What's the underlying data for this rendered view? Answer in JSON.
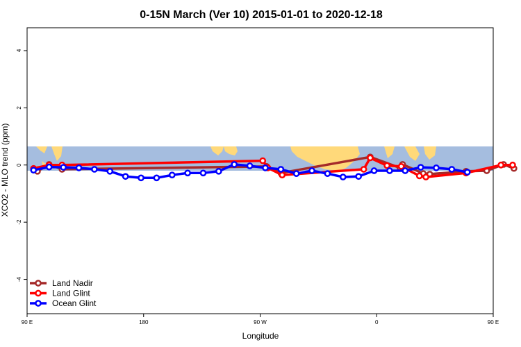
{
  "chart_data": {
    "type": "line",
    "title": "0-15N March (Ver 10)   2015-01-01 to 2020-12-18",
    "xlabel": "Longitude",
    "ylabel": "XCO2 - MLO trend (ppm)",
    "xlim": [
      90,
      450
    ],
    "ylim": [
      -5.2,
      4.8
    ],
    "x_ticks": [
      {
        "value": 90,
        "label": "90 E"
      },
      {
        "value": 180,
        "label": "180"
      },
      {
        "value": 270,
        "label": "90 W"
      },
      {
        "value": 360,
        "label": "0"
      },
      {
        "value": 450,
        "label": "90 E"
      },
      {
        "value": 540,
        "label": "180"
      }
    ],
    "y_ticks": [
      {
        "value": 4,
        "label": "4"
      },
      {
        "value": 2,
        "label": "2"
      },
      {
        "value": 0,
        "label": "0"
      },
      {
        "value": -2,
        "label": "-2"
      },
      {
        "value": -4,
        "label": "-4"
      }
    ],
    "legend_position": "bottom-left",
    "background": {
      "ocean_color": "#a5bddf",
      "land_color": "#ffd97a",
      "lat_band": "0-15N"
    },
    "series": [
      {
        "name": "Land Nadir",
        "color": "#a52a2a",
        "points": [
          [
            98,
            -0.22
          ],
          [
            107,
            0.02
          ],
          [
            117,
            -0.15
          ],
          [
            275,
            -0.05
          ],
          [
            286,
            -0.28
          ],
          [
            355,
            0.28
          ],
          [
            378,
            -0.1
          ],
          [
            380,
            0.02
          ],
          [
            396,
            -0.3
          ],
          [
            401,
            -0.32
          ],
          [
            429,
            -0.22
          ],
          [
            445,
            -0.2
          ],
          [
            458,
            0.02
          ],
          [
            466,
            -0.12
          ]
        ]
      },
      {
        "name": "Land Glint",
        "color": "#ff0000",
        "points": [
          [
            95,
            -0.12
          ],
          [
            107,
            0.0
          ],
          [
            117,
            0.0
          ],
          [
            272,
            0.15
          ],
          [
            276,
            -0.1
          ],
          [
            287,
            -0.35
          ],
          [
            350,
            -0.15
          ],
          [
            355,
            0.25
          ],
          [
            368,
            -0.02
          ],
          [
            379,
            -0.05
          ],
          [
            393,
            -0.38
          ],
          [
            398,
            -0.42
          ],
          [
            429,
            -0.28
          ],
          [
            456,
            0.0
          ],
          [
            465,
            0.0
          ]
        ]
      },
      {
        "name": "Ocean Glint",
        "color": "#0000ff",
        "points": [
          [
            95,
            -0.18
          ],
          [
            107,
            -0.07
          ],
          [
            118,
            -0.08
          ],
          [
            130,
            -0.1
          ],
          [
            142,
            -0.15
          ],
          [
            154,
            -0.22
          ],
          [
            166,
            -0.4
          ],
          [
            178,
            -0.45
          ],
          [
            190,
            -0.45
          ],
          [
            202,
            -0.35
          ],
          [
            214,
            -0.28
          ],
          [
            226,
            -0.28
          ],
          [
            238,
            -0.22
          ],
          [
            250,
            0.02
          ],
          [
            262,
            -0.03
          ],
          [
            274,
            -0.1
          ],
          [
            286,
            -0.15
          ],
          [
            298,
            -0.3
          ],
          [
            310,
            -0.2
          ],
          [
            322,
            -0.3
          ],
          [
            334,
            -0.42
          ],
          [
            346,
            -0.4
          ],
          [
            358,
            -0.2
          ],
          [
            370,
            -0.2
          ],
          [
            382,
            -0.2
          ],
          [
            394,
            -0.08
          ],
          [
            406,
            -0.1
          ],
          [
            418,
            -0.15
          ],
          [
            430,
            -0.25
          ]
        ]
      }
    ]
  }
}
